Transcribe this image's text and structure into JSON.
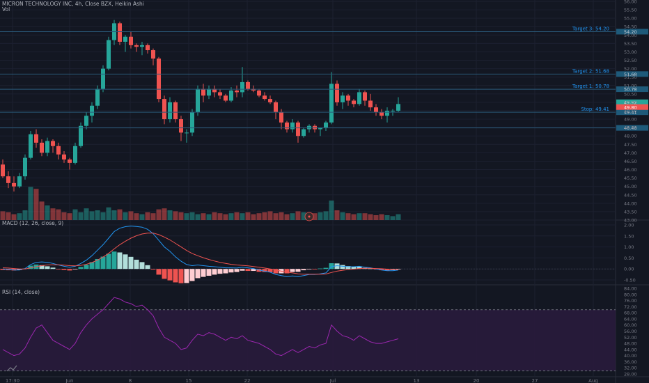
{
  "header": {
    "title": "MICRON TECHNOLOGY INC, 4h, Close BZX, Heikin Ashi",
    "vol_label": "Vol"
  },
  "colors": {
    "background": "#131722",
    "up": "#26a69a",
    "down": "#ef5350",
    "level_line": "#2a5a7a",
    "level_text": "#2196f3",
    "macd_line": "#2196f3",
    "signal_line": "#ef5350",
    "rsi_line": "#9c27b0",
    "rsi_band": "#2a1b3d"
  },
  "chart_data": [
    {
      "type": "candlestick",
      "title": "MICRON TECHNOLOGY INC, 4h, Close BZX, Heikin Ashi",
      "ylim": [
        43.0,
        56.0
      ],
      "y_ticks": [
        "56.00",
        "55.50",
        "55.00",
        "54.50",
        "54.00",
        "53.50",
        "53.00",
        "52.50",
        "52.00",
        "51.50",
        "51.00",
        "50.50",
        "50.00",
        "49.50",
        "49.00",
        "48.50",
        "48.00",
        "47.50",
        "47.00",
        "46.50",
        "46.00",
        "45.50",
        "45.00",
        "44.50",
        "44.00",
        "43.50",
        "43.00"
      ],
      "x_ticks": [
        "17:30",
        "Jun",
        "8",
        "15",
        "22",
        "Jul",
        "13",
        "20",
        "27",
        "Aug"
      ],
      "price_levels": [
        {
          "label": "Target 3: 54.20",
          "tag": "54.20",
          "value": 54.2
        },
        {
          "label": "Target 2: 51.68",
          "tag": "51.68",
          "value": 51.68
        },
        {
          "label": "Target 1: 50.78",
          "tag": "50.78",
          "value": 50.78
        },
        {
          "label": "Stop: 49.41",
          "tag": "49.41",
          "value": 49.41
        },
        {
          "label": "",
          "tag": "48.48",
          "value": 48.48
        }
      ],
      "last_price_tags": [
        "49.92",
        "49.80"
      ],
      "candles": [
        [
          46.3,
          46.6,
          45.5,
          45.6
        ],
        [
          45.6,
          45.9,
          44.9,
          45.2
        ],
        [
          45.2,
          45.6,
          44.7,
          45.0
        ],
        [
          45.0,
          45.8,
          44.9,
          45.6
        ],
        [
          45.6,
          46.9,
          45.4,
          46.7
        ],
        [
          46.7,
          48.3,
          46.6,
          48.1
        ],
        [
          48.1,
          48.4,
          47.3,
          47.6
        ],
        [
          47.6,
          47.8,
          46.8,
          47.0
        ],
        [
          47.0,
          47.9,
          46.8,
          47.7
        ],
        [
          47.7,
          47.8,
          47.0,
          47.4
        ],
        [
          47.4,
          47.6,
          46.6,
          46.9
        ],
        [
          46.9,
          47.1,
          46.4,
          46.6
        ],
        [
          46.6,
          46.7,
          46.0,
          46.4
        ],
        [
          46.4,
          47.6,
          46.3,
          47.4
        ],
        [
          47.4,
          48.8,
          47.3,
          48.6
        ],
        [
          48.6,
          49.4,
          48.4,
          49.2
        ],
        [
          49.2,
          50.0,
          48.8,
          49.8
        ],
        [
          49.8,
          51.0,
          49.6,
          50.8
        ],
        [
          50.8,
          52.2,
          50.6,
          52.0
        ],
        [
          52.0,
          53.9,
          51.9,
          53.7
        ],
        [
          53.7,
          54.9,
          53.4,
          54.7
        ],
        [
          54.7,
          54.8,
          53.4,
          53.6
        ],
        [
          53.6,
          54.0,
          53.0,
          53.9
        ],
        [
          53.9,
          54.2,
          53.2,
          53.4
        ],
        [
          53.4,
          53.5,
          53.0,
          53.3
        ],
        [
          53.3,
          53.6,
          52.8,
          53.4
        ],
        [
          53.4,
          53.5,
          52.9,
          53.1
        ],
        [
          53.1,
          53.2,
          52.2,
          52.6
        ],
        [
          52.6,
          52.7,
          50.0,
          50.2
        ],
        [
          50.2,
          50.4,
          48.7,
          49.0
        ],
        [
          49.0,
          50.3,
          48.8,
          50.0
        ],
        [
          50.0,
          50.1,
          48.8,
          49.0
        ],
        [
          49.0,
          49.2,
          47.7,
          48.2
        ],
        [
          48.2,
          48.4,
          47.6,
          48.2
        ],
        [
          48.2,
          49.6,
          48.0,
          49.4
        ],
        [
          49.4,
          51.0,
          49.2,
          50.8
        ],
        [
          50.8,
          51.1,
          50.0,
          50.4
        ],
        [
          50.4,
          51.0,
          50.2,
          50.8
        ],
        [
          50.8,
          51.0,
          50.3,
          50.6
        ],
        [
          50.6,
          50.8,
          50.2,
          50.4
        ],
        [
          50.4,
          50.5,
          50.0,
          50.1
        ],
        [
          50.1,
          50.9,
          50.0,
          50.7
        ],
        [
          50.7,
          51.0,
          50.3,
          50.6
        ],
        [
          50.6,
          52.1,
          50.3,
          51.2
        ],
        [
          51.2,
          51.3,
          50.7,
          50.8
        ],
        [
          50.8,
          51.0,
          50.6,
          50.7
        ],
        [
          50.7,
          50.8,
          50.3,
          50.4
        ],
        [
          50.4,
          50.6,
          50.1,
          50.2
        ],
        [
          50.2,
          50.4,
          49.9,
          50.0
        ],
        [
          50.0,
          50.1,
          49.0,
          49.4
        ],
        [
          49.4,
          49.6,
          48.4,
          48.8
        ],
        [
          48.8,
          48.9,
          48.2,
          48.4
        ],
        [
          48.4,
          49.0,
          48.2,
          48.8
        ],
        [
          48.8,
          48.9,
          47.6,
          48.0
        ],
        [
          48.0,
          48.5,
          47.9,
          48.4
        ],
        [
          48.4,
          48.7,
          48.2,
          48.6
        ],
        [
          48.6,
          48.7,
          48.2,
          48.4
        ],
        [
          48.4,
          48.5,
          48.0,
          48.5
        ],
        [
          48.5,
          48.9,
          48.3,
          48.8
        ],
        [
          48.8,
          51.8,
          48.7,
          51.1
        ],
        [
          51.1,
          51.3,
          49.8,
          50.0
        ],
        [
          50.0,
          50.6,
          49.6,
          50.4
        ],
        [
          50.4,
          50.5,
          49.8,
          50.1
        ],
        [
          50.1,
          50.2,
          49.7,
          49.9
        ],
        [
          49.9,
          50.8,
          49.8,
          50.6
        ],
        [
          50.6,
          50.7,
          49.8,
          50.1
        ],
        [
          50.1,
          50.5,
          49.5,
          49.7
        ],
        [
          49.7,
          49.9,
          49.2,
          49.4
        ],
        [
          49.4,
          49.6,
          49.0,
          49.2
        ],
        [
          49.2,
          49.7,
          48.8,
          49.5
        ],
        [
          49.5,
          49.6,
          49.2,
          49.5
        ],
        [
          49.5,
          50.3,
          49.4,
          49.9
        ]
      ],
      "volumes": [
        0.45,
        0.4,
        0.3,
        0.35,
        0.5,
        1.7,
        1.6,
        0.95,
        0.75,
        0.6,
        0.55,
        0.4,
        0.35,
        0.55,
        0.4,
        0.6,
        0.45,
        0.5,
        0.4,
        0.65,
        0.5,
        0.55,
        0.4,
        0.45,
        0.35,
        0.3,
        0.4,
        0.35,
        0.55,
        0.6,
        0.5,
        0.45,
        0.4,
        0.35,
        0.4,
        0.3,
        0.35,
        0.3,
        0.4,
        0.35,
        0.3,
        0.35,
        0.4,
        0.35,
        0.4,
        0.3,
        0.35,
        0.4,
        0.45,
        0.35,
        0.4,
        0.3,
        0.35,
        0.45,
        0.4,
        0.3,
        0.35,
        0.4,
        0.45,
        1.0,
        0.5,
        0.4,
        0.35,
        0.3,
        0.35,
        0.35,
        0.3,
        0.25,
        0.3,
        0.25,
        0.2,
        0.3
      ]
    },
    {
      "type": "line",
      "title": "MACD (12, 26, close, 9)",
      "ylim": [
        -0.5,
        2.0
      ],
      "y_ticks": [
        "2.00",
        "1.50",
        "1.00",
        "0.50",
        "0.00",
        "-0.50"
      ],
      "series": [
        {
          "name": "MACD",
          "values": [
            0.0,
            -0.02,
            -0.05,
            -0.05,
            0.02,
            0.2,
            0.3,
            0.32,
            0.3,
            0.25,
            0.18,
            0.12,
            0.08,
            0.12,
            0.25,
            0.4,
            0.6,
            0.85,
            1.1,
            1.4,
            1.7,
            1.85,
            1.92,
            1.95,
            1.93,
            1.9,
            1.8,
            1.6,
            1.3,
            1.0,
            0.8,
            0.55,
            0.35,
            0.2,
            0.15,
            0.18,
            0.15,
            0.12,
            0.1,
            0.08,
            0.05,
            0.05,
            0.04,
            0.08,
            0.05,
            0.02,
            -0.05,
            -0.1,
            -0.15,
            -0.25,
            -0.3,
            -0.35,
            -0.32,
            -0.35,
            -0.3,
            -0.25,
            -0.25,
            -0.22,
            -0.18,
            0.1,
            0.15,
            0.12,
            0.1,
            0.1,
            0.12,
            0.08,
            0.05,
            0.0,
            -0.05,
            -0.08,
            -0.08,
            -0.05
          ]
        },
        {
          "name": "Signal",
          "values": [
            0.05,
            0.04,
            0.02,
            0.0,
            0.0,
            0.05,
            0.1,
            0.15,
            0.18,
            0.19,
            0.19,
            0.17,
            0.15,
            0.14,
            0.16,
            0.21,
            0.29,
            0.4,
            0.54,
            0.71,
            0.91,
            1.1,
            1.26,
            1.4,
            1.51,
            1.59,
            1.63,
            1.63,
            1.56,
            1.45,
            1.32,
            1.16,
            1.0,
            0.84,
            0.7,
            0.6,
            0.51,
            0.43,
            0.36,
            0.3,
            0.25,
            0.21,
            0.18,
            0.16,
            0.14,
            0.11,
            0.08,
            0.04,
            0.0,
            -0.05,
            -0.1,
            -0.15,
            -0.18,
            -0.22,
            -0.24,
            -0.24,
            -0.24,
            -0.24,
            -0.23,
            -0.16,
            -0.1,
            -0.06,
            -0.03,
            -0.01,
            0.02,
            0.03,
            0.03,
            0.02,
            0.01,
            -0.01,
            -0.03,
            -0.04
          ]
        }
      ]
    },
    {
      "type": "line",
      "title": "RSI (14, close)",
      "ylim": [
        28,
        84
      ],
      "band": [
        30,
        70
      ],
      "y_ticks": [
        "84.00",
        "80.00",
        "76.00",
        "72.00",
        "68.00",
        "64.00",
        "60.00",
        "56.00",
        "52.00",
        "48.00",
        "44.00",
        "40.00",
        "36.00",
        "32.00",
        "28.00"
      ],
      "series": [
        {
          "name": "RSI",
          "values": [
            44,
            42,
            40,
            41,
            45,
            52,
            58,
            60,
            55,
            50,
            48,
            46,
            44,
            48,
            55,
            60,
            64,
            67,
            70,
            74,
            78,
            77,
            75,
            74,
            72,
            73,
            70,
            66,
            58,
            52,
            50,
            48,
            44,
            45,
            50,
            54,
            53,
            55,
            54,
            52,
            50,
            52,
            51,
            53,
            50,
            49,
            48,
            46,
            44,
            41,
            40,
            42,
            44,
            42,
            44,
            46,
            45,
            47,
            48,
            60,
            56,
            53,
            52,
            50,
            53,
            51,
            49,
            48,
            48,
            49,
            50,
            51
          ]
        }
      ]
    }
  ]
}
